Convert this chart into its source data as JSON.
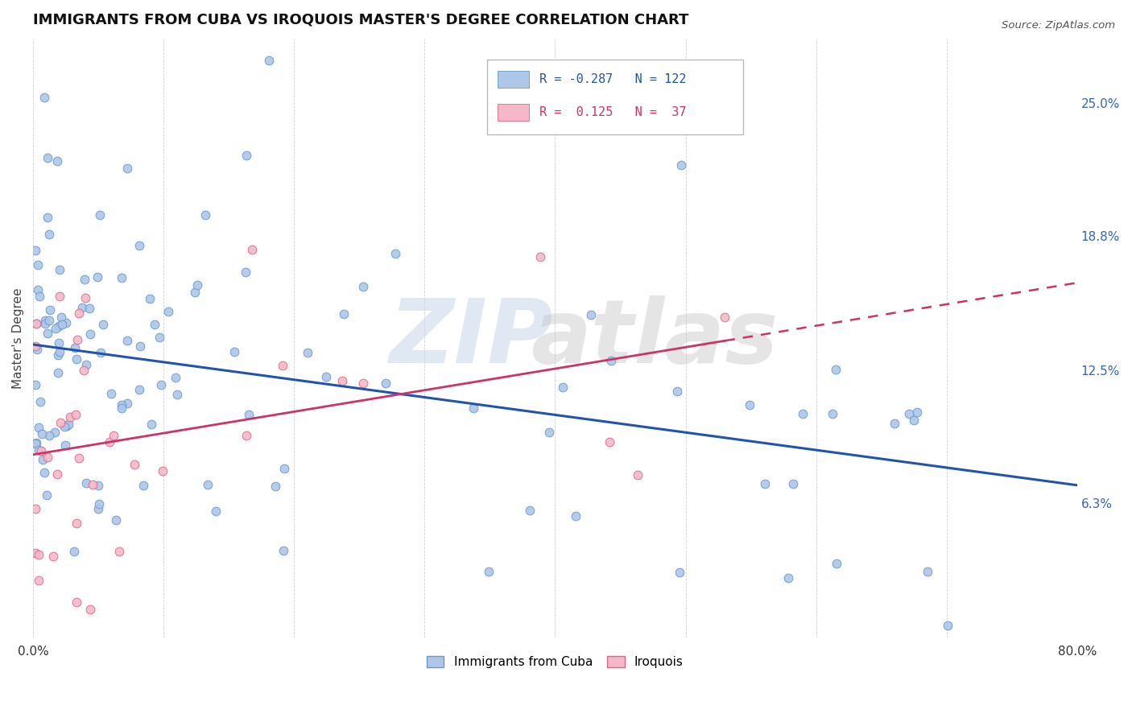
{
  "title": "IMMIGRANTS FROM CUBA VS IROQUOIS MASTER'S DEGREE CORRELATION CHART",
  "source_text": "Source: ZipAtlas.com",
  "ylabel": "Master's Degree",
  "series": [
    {
      "name": "Immigrants from Cuba",
      "R": -0.287,
      "N": 122,
      "color": "#aec6e8",
      "edge_color": "#6699cc",
      "trend_color": "#2255aa"
    },
    {
      "name": "Iroquois",
      "R": 0.125,
      "N": 37,
      "color": "#f4b8c8",
      "edge_color": "#dd6688",
      "trend_color": "#cc3366"
    }
  ],
  "xlim": [
    0.0,
    0.8
  ],
  "ylim": [
    0.0,
    0.28
  ],
  "xticks": [
    0.0,
    0.1,
    0.2,
    0.3,
    0.4,
    0.5,
    0.6,
    0.7,
    0.8
  ],
  "xtick_labels": [
    "0.0%",
    "",
    "",
    "",
    "",
    "",
    "",
    "",
    "80.0%"
  ],
  "yticks_right": [
    0.063,
    0.125,
    0.188,
    0.25
  ],
  "ytick_labels_right": [
    "6.3%",
    "12.5%",
    "18.8%",
    "25.0%"
  ],
  "background_color": "#ffffff",
  "grid_color": "#cccccc",
  "legend_R_cuba": "-0.287",
  "legend_N_cuba": "122",
  "legend_R_iro": "0.125",
  "legend_N_iro": "37"
}
